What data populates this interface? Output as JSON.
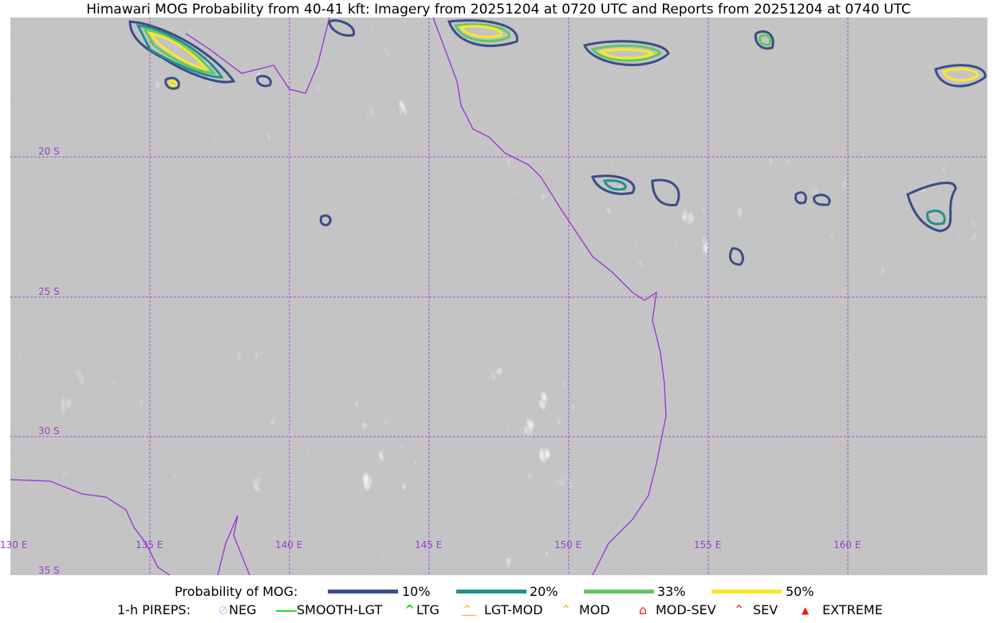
{
  "title": "Himawari MOG Probability from 40-41 kft: Imagery from 20251204 at 0720 UTC and Reports from 20251204 at 0740 UTC",
  "map": {
    "lat_labels": [
      "20 S",
      "25 S",
      "30 S",
      "35 S"
    ],
    "lon_labels": [
      "130 E",
      "135 E",
      "140 E",
      "145 E",
      "150 E",
      "155 E",
      "160 E"
    ],
    "coastline_color": "#9b30d9",
    "grid_color": "#9b30d9"
  },
  "legend": {
    "prob_title": "Probability of MOG:",
    "prob_levels": [
      {
        "label": "10%",
        "color": "#3b4d8a"
      },
      {
        "label": "20%",
        "color": "#21918c"
      },
      {
        "label": "33%",
        "color": "#5ec962"
      },
      {
        "label": "50%",
        "color": "#fde725"
      }
    ],
    "pirep_title": "1-h PIREPS:",
    "pireps": [
      {
        "label": "NEG",
        "color": "#c8c8f5",
        "icon": "neg-circle-icon"
      },
      {
        "label": "SMOOTH-LGT",
        "color": "#22dd22",
        "icon": "line-icon"
      },
      {
        "label": "LTG",
        "color": "#00ee00",
        "icon": "caret-icon"
      },
      {
        "label": "LGT-MOD",
        "color": "#ffb020",
        "icon": "caret-bar-icon"
      },
      {
        "label": "MOD",
        "color": "#ffb020",
        "icon": "caret-icon"
      },
      {
        "label": "MOD-SEV",
        "color": "#ff2020",
        "icon": "double-caret-bar-icon"
      },
      {
        "label": "SEV",
        "color": "#ff2020",
        "icon": "double-caret-icon"
      },
      {
        "label": "EXTREME",
        "color": "#ff1010",
        "icon": "filled-triangle-icon"
      }
    ]
  }
}
